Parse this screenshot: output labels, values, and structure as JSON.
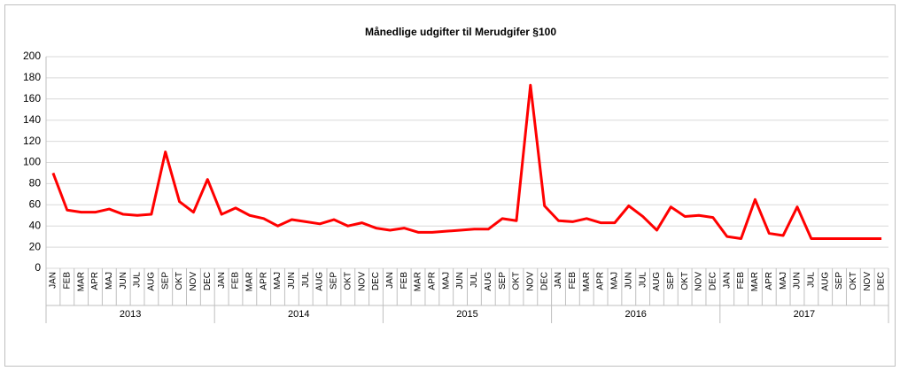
{
  "chart_data": {
    "type": "line",
    "title": "Månedlige udgifter til Merudgifer §100",
    "categories": [
      "JAN",
      "FEB",
      "MAR",
      "APR",
      "MAJ",
      "JUN",
      "JUL",
      "AUG",
      "SEP",
      "OKT",
      "NOV",
      "DEC",
      "JAN",
      "FEB",
      "MAR",
      "APR",
      "MAJ",
      "JUN",
      "JUL",
      "AUG",
      "SEP",
      "OKT",
      "NOV",
      "DEC",
      "JAN",
      "FEB",
      "MAR",
      "APR",
      "MAJ",
      "JUN",
      "JUL",
      "AUG",
      "SEP",
      "OKT",
      "NOV",
      "DEC",
      "JAN",
      "FEB",
      "MAR",
      "APR",
      "MAJ",
      "JUN",
      "JUL",
      "AUG",
      "SEP",
      "OKT",
      "NOV",
      "DEC",
      "JAN",
      "FEB",
      "MAR",
      "APR",
      "MAJ",
      "JUN",
      "JUL",
      "AUG",
      "SEP",
      "OKT",
      "NOV",
      "DEC"
    ],
    "years": [
      "2013",
      "2014",
      "2015",
      "2016",
      "2017"
    ],
    "values": [
      90,
      55,
      53,
      53,
      56,
      51,
      50,
      51,
      110,
      63,
      53,
      84,
      51,
      57,
      50,
      47,
      40,
      46,
      44,
      42,
      46,
      40,
      43,
      38,
      36,
      38,
      34,
      34,
      35,
      36,
      37,
      37,
      47,
      45,
      173,
      59,
      45,
      44,
      47,
      43,
      43,
      59,
      49,
      36,
      58,
      49,
      50,
      48,
      30,
      28,
      65,
      33,
      31,
      58,
      28,
      28,
      28,
      28,
      28,
      28
    ],
    "color": "#ff0000",
    "ylim": [
      0,
      200
    ],
    "yticks": [
      0,
      20,
      40,
      60,
      80,
      100,
      120,
      140,
      160,
      180,
      200
    ],
    "grid": true
  }
}
